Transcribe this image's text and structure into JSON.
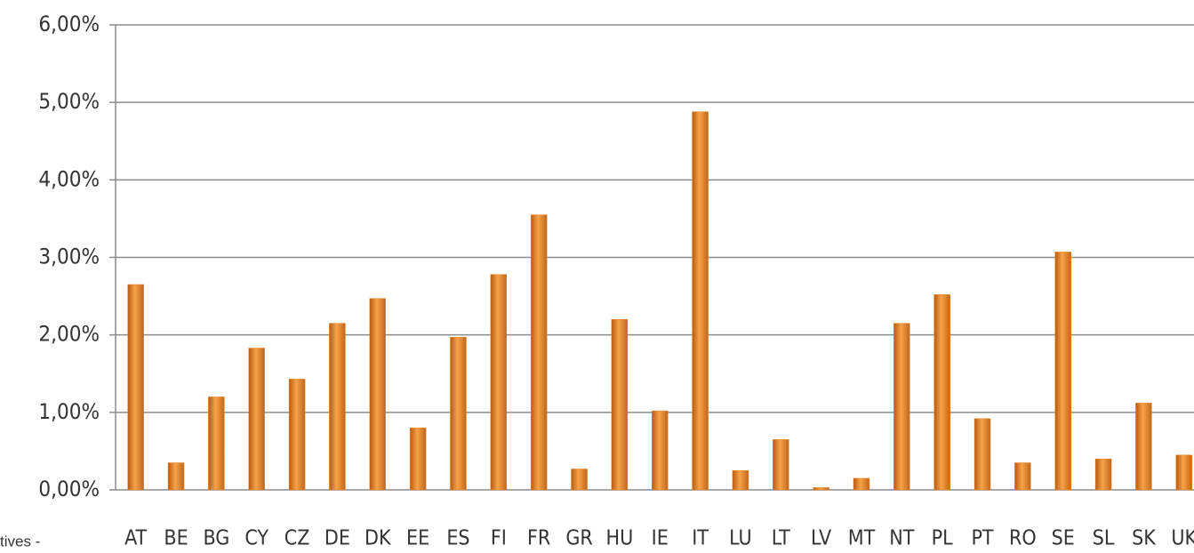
{
  "chart_data": {
    "type": "bar",
    "categories": [
      "AT",
      "BE",
      "BG",
      "CY",
      "CZ",
      "DE",
      "DK",
      "EE",
      "ES",
      "FI",
      "FR",
      "GR",
      "HU",
      "IE",
      "IT",
      "LU",
      "LT",
      "LV",
      "MT",
      "NT",
      "PL",
      "PT",
      "RO",
      "SE",
      "SL",
      "SK",
      "UK"
    ],
    "values": [
      2.65,
      0.35,
      1.2,
      1.83,
      1.43,
      2.15,
      2.47,
      0.8,
      1.97,
      2.78,
      3.55,
      0.27,
      2.2,
      1.02,
      4.88,
      0.25,
      0.65,
      0.03,
      0.15,
      2.15,
      2.52,
      0.92,
      0.35,
      3.07,
      0.4,
      1.12,
      0.45
    ],
    "color": "#e8892a",
    "ylim": [
      0,
      6
    ],
    "yticks": [
      {
        "value": 0,
        "label": "0,00%"
      },
      {
        "value": 1,
        "label": "1,00%"
      },
      {
        "value": 2,
        "label": "2,00%"
      },
      {
        "value": 3,
        "label": "3,00%"
      },
      {
        "value": 4,
        "label": "4,00%"
      },
      {
        "value": 5,
        "label": "5,00%"
      },
      {
        "value": 6,
        "label": "6,00%"
      }
    ],
    "grid": true,
    "footnote": "tives -"
  }
}
